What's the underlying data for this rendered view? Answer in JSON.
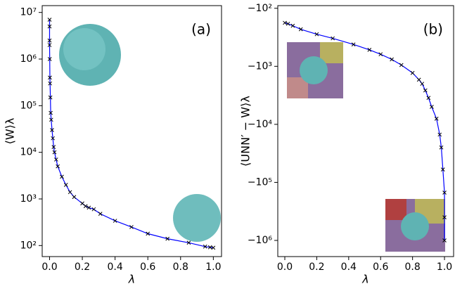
{
  "chart_data": [
    {
      "type": "line",
      "annotation": "(a)",
      "xlabel": "λ",
      "ylabel": "⟨W⟩λ",
      "log_y": true,
      "xlim": [
        -0.045,
        1.05
      ],
      "ylim": [
        58,
        14000000
      ],
      "xticks": [
        {
          "value": 0,
          "label": "0.0"
        },
        0.2,
        0.4,
        0.6,
        0.8,
        {
          "value": 1,
          "label": "1.0"
        }
      ],
      "yticks": [
        {
          "value": 100,
          "label": "10²"
        },
        {
          "value": 1000,
          "label": "10³"
        },
        {
          "value": 10000,
          "label": "10⁴"
        },
        {
          "value": 100000,
          "label": "10⁵"
        },
        {
          "value": 1000000,
          "label": "10⁶"
        },
        {
          "value": 10000000,
          "label": "10⁷"
        }
      ],
      "series": [
        {
          "color": "#0000ff",
          "marker_color": "#000000",
          "x": [
            0,
            0,
            0,
            0,
            0.001,
            0.002,
            0.003,
            0.005,
            0.007,
            0.01,
            0.015,
            0.02,
            0.025,
            0.03,
            0.04,
            0.05,
            0.075,
            0.1,
            0.125,
            0.15,
            0.2,
            0.22,
            0.24,
            0.27,
            0.31,
            0.4,
            0.5,
            0.6,
            0.72,
            0.85,
            0.95,
            0.98,
            1
          ],
          "values": [
            7000000,
            5000000,
            2500000,
            2000000,
            1000000,
            400000,
            300000,
            150000,
            70000,
            50000,
            30000,
            20000,
            13000,
            10000,
            7000,
            5000,
            3000,
            2000,
            1400,
            1100,
            800,
            700,
            650,
            600,
            480,
            340,
            250,
            180,
            140,
            115,
            95,
            92,
            90
          ]
        }
      ]
    },
    {
      "type": "line",
      "annotation": "(b)",
      "xlabel": "λ",
      "ylabel": "⟨UNN′ − W⟩λ",
      "log_y": true,
      "xlim": [
        -0.044,
        1.057
      ],
      "ylim": [
        -1900000,
        -90
      ],
      "xticks": [
        {
          "value": 0,
          "label": "0.0"
        },
        0.2,
        0.4,
        0.6,
        0.8,
        {
          "value": 1,
          "label": "1.0"
        }
      ],
      "yticks": [
        {
          "value": -100,
          "label": "−10²"
        },
        {
          "value": -1000,
          "label": "−10³"
        },
        {
          "value": -10000,
          "label": "−10⁴"
        },
        {
          "value": -100000,
          "label": "−10⁵"
        },
        {
          "value": -1000000,
          "label": "−10⁶"
        }
      ],
      "series": [
        {
          "color": "#0000ff",
          "marker_color": "#000000",
          "x": [
            0,
            0.02,
            0.05,
            0.1,
            0.2,
            0.3,
            0.43,
            0.53,
            0.6,
            0.67,
            0.73,
            0.8,
            0.84,
            0.86,
            0.88,
            0.9,
            0.92,
            0.95,
            0.97,
            0.98,
            0.99,
            1,
            1,
            1
          ],
          "values": [
            -178,
            -185,
            -200,
            -230,
            -280,
            -330,
            -420,
            -520,
            -620,
            -760,
            -950,
            -1300,
            -1700,
            -2000,
            -2600,
            -3500,
            -5000,
            -8000,
            -15000,
            -25000,
            -60000,
            -150000,
            -400000,
            -1000000
          ]
        }
      ]
    }
  ]
}
